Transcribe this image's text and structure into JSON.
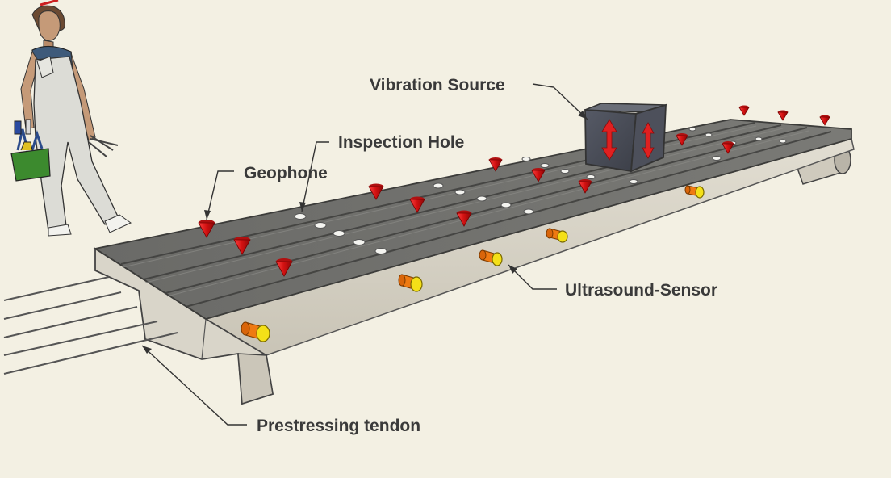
{
  "labels": {
    "vibration_source": "Vibration Source",
    "inspection_hole": "Inspection Hole",
    "geophone": "Geophone",
    "ultrasound_sensor": "Ultrasound-Sensor",
    "prestressing_tendon": "Prestressing tendon"
  },
  "colors": {
    "background": "#f3f0e3",
    "slab_top": "#6e6e6b",
    "slab_side": "#d8d4c8",
    "geophone": "#e01818",
    "sensor_body": "#f07a10",
    "sensor_face": "#f5e21a",
    "vibration_box": "#4a4d57",
    "arrow": "#e02020",
    "label": "#3a3a3a"
  },
  "icons": {
    "geophone": "red-cone",
    "ultrasound_sensor": "orange-cylinder",
    "vibration_source": "cube-with-arrows",
    "worker": "person-with-toolbag"
  }
}
